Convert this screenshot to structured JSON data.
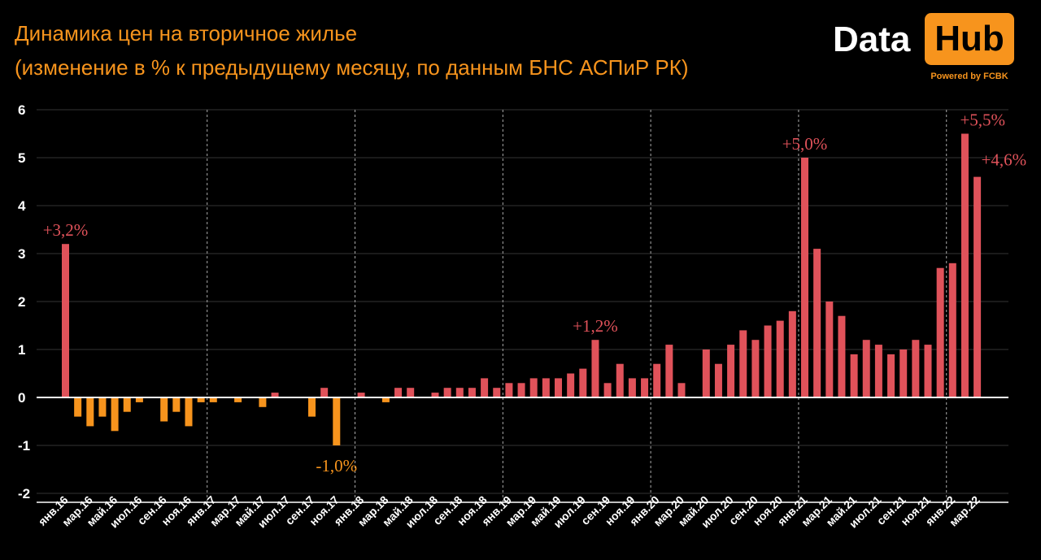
{
  "title_line1": "Динамика цен на вторичное жилье",
  "title_line2": "(изменение в % к предыдущему месяцу, по данным БНС АСПиР РК)",
  "logo": {
    "part1": "Data",
    "part2": "Hub",
    "powered": "Powered by FCBK"
  },
  "colors": {
    "positive": "#e0525a",
    "negative": "#f7941d",
    "title": "#f7941d",
    "background": "#000000"
  },
  "chart_data": {
    "type": "bar",
    "ylim": [
      -2,
      6
    ],
    "y_ticks": [
      6,
      5,
      4,
      3,
      2,
      1,
      0,
      -1,
      -2
    ],
    "grid": true,
    "year_separators": [
      "янв.17",
      "янв.18",
      "янв.19",
      "янв.20",
      "янв.21",
      "янв.22"
    ],
    "categories": [
      "янв.16",
      "фев.16",
      "мар.16",
      "апр.16",
      "май.16",
      "июн.16",
      "июл.16",
      "авг.16",
      "сен.16",
      "окт.16",
      "ноя.16",
      "дек.16",
      "янв.17",
      "фев.17",
      "мар.17",
      "апр.17",
      "май.17",
      "июн.17",
      "июл.17",
      "авг.17",
      "сен.17",
      "окт.17",
      "ноя.17",
      "дек.17",
      "янв.18",
      "фев.18",
      "мар.18",
      "апр.18",
      "май.18",
      "июн.18",
      "июл.18",
      "авг.18",
      "сен.18",
      "окт.18",
      "ноя.18",
      "дек.18",
      "янв.19",
      "фев.19",
      "мар.19",
      "апр.19",
      "май.19",
      "июн.19",
      "июл.19",
      "авг.19",
      "сен.19",
      "окт.19",
      "ноя.19",
      "дек.19",
      "янв.20",
      "фев.20",
      "мар.20",
      "апр.20",
      "май.20",
      "июн.20",
      "июл.20",
      "авг.20",
      "сен.20",
      "окт.20",
      "ноя.20",
      "дек.20",
      "янв.21",
      "фев.21",
      "мар.21",
      "апр.21",
      "май.21",
      "июн.21",
      "июл.21",
      "авг.21",
      "сен.21",
      "окт.21",
      "ноя.21",
      "дек.21",
      "янв.22",
      "фев.22",
      "мар.22",
      "апр.22"
    ],
    "x_tick_labels": [
      "янв.16",
      "мар.16",
      "май.16",
      "июл.16",
      "сен.16",
      "ноя.16",
      "янв.17",
      "мар.17",
      "май.17",
      "июл.17",
      "сен.17",
      "ноя.17",
      "янв.18",
      "мар.18",
      "май.18",
      "июл.18",
      "сен.18",
      "ноя.18",
      "янв.19",
      "мар.19",
      "май.19",
      "июл.19",
      "сен.19",
      "ноя.19",
      "янв.20",
      "мар.20",
      "май.20",
      "июл.20",
      "сен.20",
      "ноя.20",
      "янв.21",
      "мар.21",
      "май.21",
      "июл.21",
      "сен.21",
      "ноя.21",
      "янв.22",
      "мар.22"
    ],
    "values": [
      3.2,
      -0.4,
      -0.6,
      -0.4,
      -0.7,
      -0.3,
      -0.1,
      0.0,
      -0.5,
      -0.3,
      -0.6,
      -0.1,
      -0.1,
      0.0,
      -0.1,
      0.0,
      -0.2,
      0.1,
      0.0,
      0.0,
      -0.4,
      0.2,
      -1.0,
      0.0,
      0.1,
      0.0,
      -0.1,
      0.2,
      0.2,
      0.0,
      0.1,
      0.2,
      0.2,
      0.2,
      0.4,
      0.2,
      0.3,
      0.3,
      0.4,
      0.4,
      0.4,
      0.5,
      0.6,
      1.2,
      0.3,
      0.7,
      0.4,
      0.4,
      0.7,
      1.1,
      0.3,
      0.0,
      1.0,
      0.7,
      1.1,
      1.4,
      1.2,
      1.5,
      1.6,
      1.8,
      5.0,
      3.1,
      2.0,
      1.7,
      0.9,
      1.2,
      1.1,
      0.9,
      1.0,
      1.2,
      1.1,
      2.7,
      2.8,
      5.5,
      4.6,
      0.0
    ],
    "annotations": [
      {
        "category": "янв.16",
        "text": "+3,2%"
      },
      {
        "category": "ноя.17",
        "text": "-1,0%"
      },
      {
        "category": "авг.19",
        "text": "+1,2%"
      },
      {
        "category": "янв.21",
        "text": "+5,0%"
      },
      {
        "category": "фев.22",
        "text": "+5,5%"
      },
      {
        "category": "мар.22",
        "text": "+4,6%"
      }
    ]
  }
}
